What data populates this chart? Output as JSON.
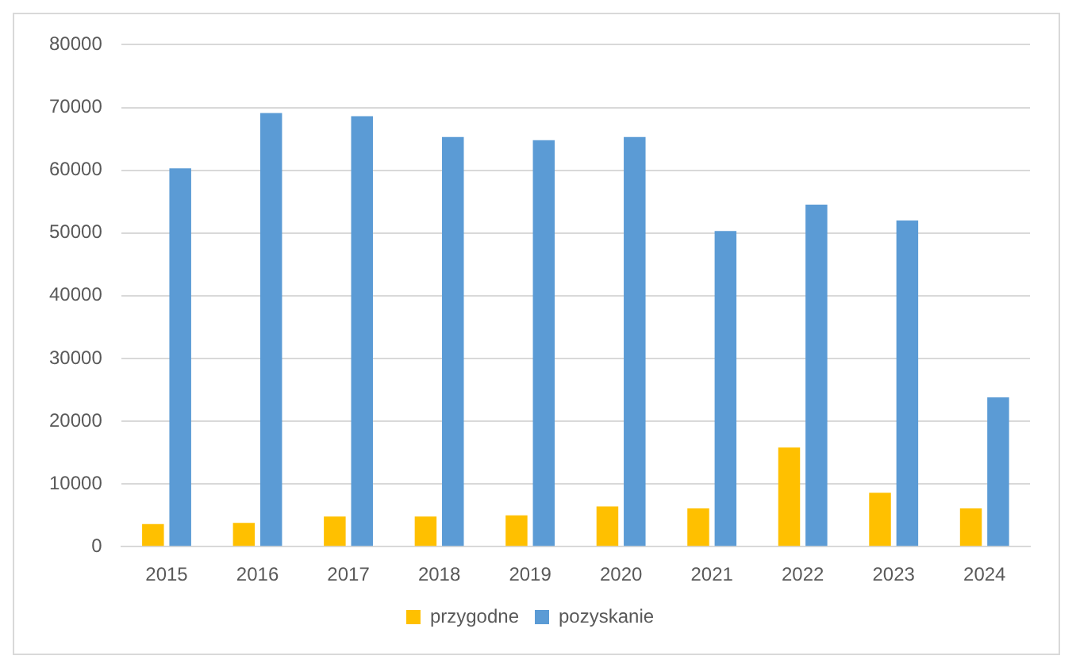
{
  "chart_data": {
    "type": "bar",
    "categories": [
      "2015",
      "2016",
      "2017",
      "2018",
      "2019",
      "2020",
      "2021",
      "2022",
      "2023",
      "2024"
    ],
    "series": [
      {
        "name": "przygodne",
        "color": "#ffc000",
        "values": [
          3600,
          3800,
          4800,
          4800,
          5000,
          6400,
          6100,
          15800,
          8600,
          6100
        ]
      },
      {
        "name": "pozyskanie",
        "color": "#5b9bd5",
        "values": [
          60300,
          69100,
          68600,
          65300,
          64800,
          65300,
          50300,
          54500,
          52000,
          23800
        ]
      }
    ],
    "ylim": [
      0,
      80000
    ],
    "yticks": [
      0,
      10000,
      20000,
      30000,
      40000,
      50000,
      60000,
      70000,
      80000
    ],
    "grid": "y",
    "legend": "bottom"
  }
}
